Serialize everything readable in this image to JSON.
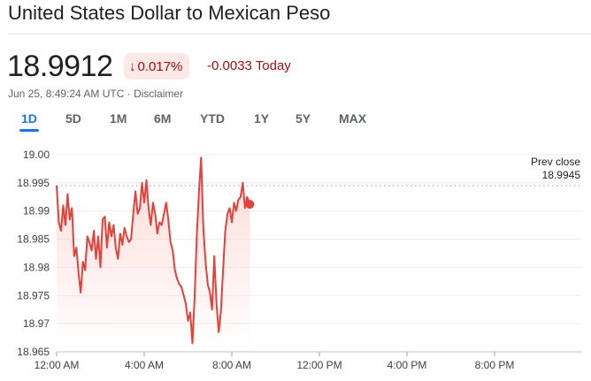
{
  "header": {
    "title": "United States Dollar to Mexican Peso"
  },
  "quote": {
    "price": "18.9912",
    "change_percent": "0.017%",
    "change_abs": "-0.0033 Today",
    "timestamp": "Jun 25, 8:49:24 AM UTC",
    "separator": " · ",
    "disclaimer": "Disclaimer",
    "direction_icon": "arrow-down-icon"
  },
  "range_tabs": [
    {
      "label": "1D",
      "active": true
    },
    {
      "label": "5D",
      "active": false
    },
    {
      "label": "1M",
      "active": false
    },
    {
      "label": "6M",
      "active": false
    },
    {
      "label": "YTD",
      "active": false
    },
    {
      "label": "1Y",
      "active": false
    },
    {
      "label": "5Y",
      "active": false
    },
    {
      "label": "MAX",
      "active": false
    }
  ],
  "colors": {
    "line": "#e5413a",
    "fill_top": "#fbd7d4",
    "grid": "#ececec",
    "text_muted": "#5f6368",
    "accent": "#1a73e8"
  },
  "chart_data": {
    "type": "line",
    "title": "",
    "xlabel": "",
    "ylabel": "",
    "ylim": [
      18.965,
      19.0
    ],
    "y_ticks": [
      "19.00",
      "18.995",
      "18.99",
      "18.985",
      "18.98",
      "18.975",
      "18.97",
      "18.965"
    ],
    "x_ticks": [
      {
        "label": "12:00 AM",
        "hour": 0
      },
      {
        "label": "4:00 AM",
        "hour": 4
      },
      {
        "label": "8:00 AM",
        "hour": 8
      },
      {
        "label": "12:00 PM",
        "hour": 12
      },
      {
        "label": "4:00 PM",
        "hour": 16
      },
      {
        "label": "8:00 PM",
        "hour": 20
      }
    ],
    "xlim_hours": [
      0,
      24
    ],
    "prev_close": {
      "label": "Prev close",
      "value": "18.9945",
      "numeric": 18.9945
    },
    "series": [
      {
        "x_hours": [
          0.0,
          0.1,
          0.2,
          0.3,
          0.4,
          0.5,
          0.6,
          0.7,
          0.8,
          0.9,
          1.0,
          1.1,
          1.2,
          1.3,
          1.4,
          1.5,
          1.6,
          1.7,
          1.8,
          1.9,
          2.0,
          2.1,
          2.2,
          2.3,
          2.4,
          2.5,
          2.6,
          2.7,
          2.8,
          2.9,
          3.0,
          3.1,
          3.2,
          3.3,
          3.4,
          3.5,
          3.6,
          3.7,
          3.8,
          3.9,
          4.0,
          4.1,
          4.2,
          4.3,
          4.4,
          4.5,
          4.6,
          4.7,
          4.8,
          4.9,
          5.0,
          5.1,
          5.2,
          5.3,
          5.4,
          5.5,
          5.6,
          5.7,
          5.8,
          5.9,
          6.0,
          6.1,
          6.2,
          6.3,
          6.4,
          6.5,
          6.6,
          6.7,
          6.8,
          6.9,
          7.0,
          7.1,
          7.2,
          7.3,
          7.4,
          7.5,
          7.6,
          7.7,
          7.8,
          7.9,
          8.0,
          8.1,
          8.2,
          8.3,
          8.4,
          8.5,
          8.6,
          8.7,
          8.82
        ],
        "values": [
          18.9945,
          18.988,
          18.9865,
          18.991,
          18.9875,
          18.993,
          18.9885,
          18.9905,
          18.982,
          18.9835,
          18.979,
          18.9755,
          18.981,
          18.9795,
          18.9855,
          18.9845,
          18.983,
          18.9865,
          18.9815,
          18.9855,
          18.98,
          18.9885,
          18.989,
          18.9835,
          18.988,
          18.9855,
          18.9875,
          18.9835,
          18.9815,
          18.986,
          18.984,
          18.987,
          18.9855,
          18.9845,
          18.985,
          18.9895,
          18.9935,
          18.9895,
          18.9905,
          18.995,
          18.9915,
          18.9955,
          18.9905,
          18.9875,
          18.9915,
          18.9895,
          18.986,
          18.988,
          18.9875,
          18.9895,
          18.9915,
          18.9885,
          18.9845,
          18.983,
          18.9795,
          18.978,
          18.977,
          18.9765,
          18.975,
          18.9735,
          18.9705,
          18.972,
          18.9665,
          18.9745,
          18.9855,
          18.9935,
          18.9995,
          18.987,
          18.981,
          18.977,
          18.9755,
          18.9725,
          18.982,
          18.9735,
          18.9685,
          18.972,
          18.9795,
          18.9865,
          18.9895,
          18.9905,
          18.988,
          18.9915,
          18.99,
          18.992,
          18.9925,
          18.995,
          18.9905,
          18.9925,
          18.9912
        ]
      }
    ],
    "last_point": {
      "hour": 8.82,
      "value": 18.9912
    }
  }
}
